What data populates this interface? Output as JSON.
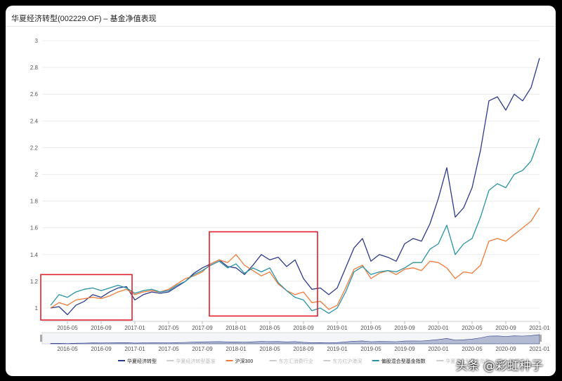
{
  "title": "华夏经济转型(002229.OF) – 基金净值表现",
  "watermark": "头条 @彩虹种子",
  "chart_data": {
    "type": "line",
    "title": "华夏经济转型(002229.OF) – 基金净值表现",
    "ylim": [
      0.9,
      3.0
    ],
    "y_ticks": [
      "1",
      "1.2",
      "1.4",
      "1.6",
      "1.8",
      "2",
      "2.2",
      "2.4",
      "2.6",
      "2.8",
      "3"
    ],
    "x_ticks": [
      "2016-05",
      "2016-09",
      "2017-01",
      "2017-05",
      "2017-09",
      "2018-01",
      "2018-05",
      "2018-09",
      "2019-01",
      "2019-05",
      "2019-09",
      "2020-01",
      "2020-05",
      "2020-09",
      "2021-01"
    ],
    "xlim": [
      "2016-02",
      "2021-01"
    ],
    "grid": true,
    "legend_position": "bottom",
    "legend": [
      {
        "name": "华夏经济转型",
        "color": "#2b3a8c",
        "active": true
      },
      {
        "name": "华夏经济转型基准",
        "color": "#cccccc",
        "active": false
      },
      {
        "name": "沪深300",
        "color": "#f07a3a",
        "active": true
      },
      {
        "name": "东方汇消费行业",
        "color": "#cccccc",
        "active": false
      },
      {
        "name": "东方红沪港深",
        "color": "#cccccc",
        "active": false
      },
      {
        "name": "偏股混合型基金指数",
        "color": "#2a92a3",
        "active": true
      },
      {
        "name": "华夏混合型基金指数",
        "color": "#cccccc",
        "active": false
      },
      {
        "name": "中证…",
        "color": "#cccccc",
        "active": false
      }
    ],
    "series": [
      {
        "name": "华夏经济转型",
        "color": "#2b3a8c",
        "points": [
          [
            "2016-03",
            1.0
          ],
          [
            "2016-04",
            1.01
          ],
          [
            "2016-05",
            0.95
          ],
          [
            "2016-06",
            1.02
          ],
          [
            "2016-07",
            1.05
          ],
          [
            "2016-08",
            1.1
          ],
          [
            "2016-09",
            1.08
          ],
          [
            "2016-10",
            1.12
          ],
          [
            "2016-11",
            1.15
          ],
          [
            "2016-12",
            1.16
          ],
          [
            "2017-01",
            1.06
          ],
          [
            "2017-02",
            1.1
          ],
          [
            "2017-03",
            1.12
          ],
          [
            "2017-04",
            1.11
          ],
          [
            "2017-05",
            1.12
          ],
          [
            "2017-06",
            1.16
          ],
          [
            "2017-07",
            1.2
          ],
          [
            "2017-08",
            1.26
          ],
          [
            "2017-09",
            1.3
          ],
          [
            "2017-10",
            1.33
          ],
          [
            "2017-11",
            1.36
          ],
          [
            "2017-12",
            1.31
          ],
          [
            "2018-01",
            1.3
          ],
          [
            "2018-02",
            1.25
          ],
          [
            "2018-03",
            1.32
          ],
          [
            "2018-04",
            1.4
          ],
          [
            "2018-05",
            1.36
          ],
          [
            "2018-06",
            1.38
          ],
          [
            "2018-07",
            1.31
          ],
          [
            "2018-08",
            1.36
          ],
          [
            "2018-09",
            1.22
          ],
          [
            "2018-10",
            1.14
          ],
          [
            "2018-11",
            1.15
          ],
          [
            "2018-12",
            1.1
          ],
          [
            "2019-01",
            1.15
          ],
          [
            "2019-02",
            1.3
          ],
          [
            "2019-03",
            1.45
          ],
          [
            "2019-04",
            1.52
          ],
          [
            "2019-05",
            1.35
          ],
          [
            "2019-06",
            1.4
          ],
          [
            "2019-07",
            1.38
          ],
          [
            "2019-08",
            1.35
          ],
          [
            "2019-09",
            1.48
          ],
          [
            "2019-10",
            1.52
          ],
          [
            "2019-11",
            1.5
          ],
          [
            "2019-12",
            1.63
          ],
          [
            "2020-01",
            1.82
          ],
          [
            "2020-02",
            2.05
          ],
          [
            "2020-03",
            1.68
          ],
          [
            "2020-04",
            1.75
          ],
          [
            "2020-05",
            1.9
          ],
          [
            "2020-06",
            2.18
          ],
          [
            "2020-07",
            2.55
          ],
          [
            "2020-08",
            2.58
          ],
          [
            "2020-09",
            2.48
          ],
          [
            "2020-10",
            2.6
          ],
          [
            "2020-11",
            2.55
          ],
          [
            "2020-12",
            2.65
          ],
          [
            "2021-01",
            2.87
          ]
        ]
      },
      {
        "name": "沪深300",
        "color": "#f07a3a",
        "points": [
          [
            "2016-03",
            1.0
          ],
          [
            "2016-04",
            1.04
          ],
          [
            "2016-05",
            1.02
          ],
          [
            "2016-06",
            1.06
          ],
          [
            "2016-07",
            1.07
          ],
          [
            "2016-08",
            1.08
          ],
          [
            "2016-09",
            1.07
          ],
          [
            "2016-10",
            1.09
          ],
          [
            "2016-11",
            1.12
          ],
          [
            "2016-12",
            1.14
          ],
          [
            "2017-01",
            1.1
          ],
          [
            "2017-02",
            1.12
          ],
          [
            "2017-03",
            1.13
          ],
          [
            "2017-04",
            1.12
          ],
          [
            "2017-05",
            1.14
          ],
          [
            "2017-06",
            1.18
          ],
          [
            "2017-07",
            1.22
          ],
          [
            "2017-08",
            1.24
          ],
          [
            "2017-09",
            1.27
          ],
          [
            "2017-10",
            1.33
          ],
          [
            "2017-11",
            1.36
          ],
          [
            "2017-12",
            1.34
          ],
          [
            "2018-01",
            1.4
          ],
          [
            "2018-02",
            1.32
          ],
          [
            "2018-03",
            1.28
          ],
          [
            "2018-04",
            1.24
          ],
          [
            "2018-05",
            1.27
          ],
          [
            "2018-06",
            1.18
          ],
          [
            "2018-07",
            1.13
          ],
          [
            "2018-08",
            1.1
          ],
          [
            "2018-09",
            1.12
          ],
          [
            "2018-10",
            1.04
          ],
          [
            "2018-11",
            1.05
          ],
          [
            "2018-12",
            0.99
          ],
          [
            "2019-01",
            1.02
          ],
          [
            "2019-02",
            1.15
          ],
          [
            "2019-03",
            1.29
          ],
          [
            "2019-04",
            1.32
          ],
          [
            "2019-05",
            1.22
          ],
          [
            "2019-06",
            1.26
          ],
          [
            "2019-07",
            1.28
          ],
          [
            "2019-08",
            1.25
          ],
          [
            "2019-09",
            1.29
          ],
          [
            "2019-10",
            1.3
          ],
          [
            "2019-11",
            1.28
          ],
          [
            "2019-12",
            1.35
          ],
          [
            "2020-01",
            1.34
          ],
          [
            "2020-02",
            1.3
          ],
          [
            "2020-03",
            1.22
          ],
          [
            "2020-04",
            1.27
          ],
          [
            "2020-05",
            1.26
          ],
          [
            "2020-06",
            1.32
          ],
          [
            "2020-07",
            1.5
          ],
          [
            "2020-08",
            1.52
          ],
          [
            "2020-09",
            1.5
          ],
          [
            "2020-10",
            1.55
          ],
          [
            "2020-11",
            1.6
          ],
          [
            "2020-12",
            1.65
          ],
          [
            "2021-01",
            1.75
          ]
        ]
      },
      {
        "name": "偏股混合型基金指数",
        "color": "#2a92a3",
        "points": [
          [
            "2016-03",
            1.02
          ],
          [
            "2016-04",
            1.1
          ],
          [
            "2016-05",
            1.08
          ],
          [
            "2016-06",
            1.12
          ],
          [
            "2016-07",
            1.14
          ],
          [
            "2016-08",
            1.15
          ],
          [
            "2016-09",
            1.13
          ],
          [
            "2016-10",
            1.15
          ],
          [
            "2016-11",
            1.17
          ],
          [
            "2016-12",
            1.15
          ],
          [
            "2017-01",
            1.11
          ],
          [
            "2017-02",
            1.13
          ],
          [
            "2017-03",
            1.14
          ],
          [
            "2017-04",
            1.12
          ],
          [
            "2017-05",
            1.13
          ],
          [
            "2017-06",
            1.17
          ],
          [
            "2017-07",
            1.2
          ],
          [
            "2017-08",
            1.25
          ],
          [
            "2017-09",
            1.28
          ],
          [
            "2017-10",
            1.32
          ],
          [
            "2017-11",
            1.35
          ],
          [
            "2017-12",
            1.3
          ],
          [
            "2018-01",
            1.33
          ],
          [
            "2018-02",
            1.26
          ],
          [
            "2018-03",
            1.3
          ],
          [
            "2018-04",
            1.27
          ],
          [
            "2018-05",
            1.3
          ],
          [
            "2018-06",
            1.19
          ],
          [
            "2018-07",
            1.13
          ],
          [
            "2018-08",
            1.08
          ],
          [
            "2018-09",
            1.06
          ],
          [
            "2018-10",
            0.98
          ],
          [
            "2018-11",
            1.0
          ],
          [
            "2018-12",
            0.96
          ],
          [
            "2019-01",
            1.0
          ],
          [
            "2019-02",
            1.12
          ],
          [
            "2019-03",
            1.27
          ],
          [
            "2019-04",
            1.31
          ],
          [
            "2019-05",
            1.25
          ],
          [
            "2019-06",
            1.27
          ],
          [
            "2019-07",
            1.28
          ],
          [
            "2019-08",
            1.27
          ],
          [
            "2019-09",
            1.3
          ],
          [
            "2019-10",
            1.34
          ],
          [
            "2019-11",
            1.34
          ],
          [
            "2019-12",
            1.44
          ],
          [
            "2020-01",
            1.48
          ],
          [
            "2020-02",
            1.62
          ],
          [
            "2020-03",
            1.4
          ],
          [
            "2020-04",
            1.48
          ],
          [
            "2020-05",
            1.52
          ],
          [
            "2020-06",
            1.68
          ],
          [
            "2020-07",
            1.88
          ],
          [
            "2020-08",
            1.93
          ],
          [
            "2020-09",
            1.9
          ],
          [
            "2020-10",
            2.0
          ],
          [
            "2020-11",
            2.03
          ],
          [
            "2020-12",
            2.1
          ],
          [
            "2021-01",
            2.27
          ]
        ]
      }
    ],
    "navigator": {
      "x_ticks": [
        "2016-05",
        "2016-09",
        "2017-01",
        "2017-05",
        "2017-09",
        "2018-01",
        "2018-05",
        "2018-09",
        "2019-01",
        "2019-05",
        "2019-09",
        "2020-01",
        "2020-05",
        "2020-09",
        "2021-01"
      ]
    },
    "highlight_color": "#e0202b"
  }
}
